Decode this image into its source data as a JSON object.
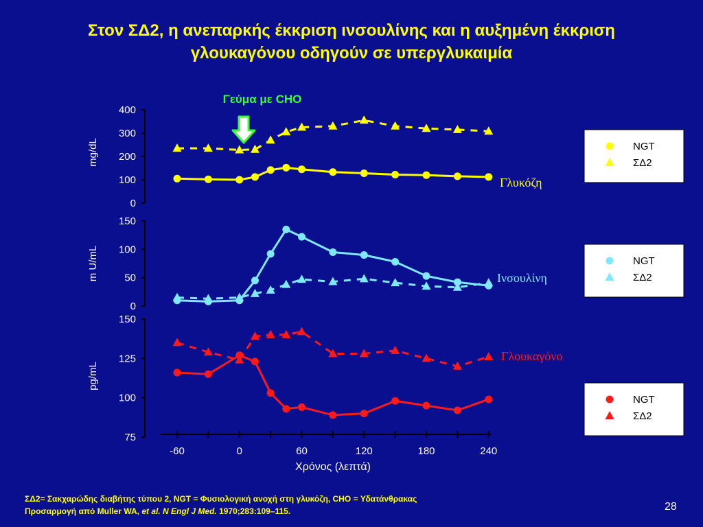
{
  "title": {
    "line1": "Στον ΣΔ2, η ανεπαρκής έκκριση ινσουλίνης και η αυξημένη έκκριση",
    "line2": "γλουκαγόνου οδηγούν σε υπεργλυκαιμία"
  },
  "meal_label": "Γεύμα με CHO",
  "colors": {
    "background": "#0a0f8f",
    "title": "#ffff00",
    "glucose": "#ffff00",
    "insulin": "#7fe8ff",
    "glucagon": "#ff1a1a",
    "meal_label": "#33ff33"
  },
  "chart_data": [
    {
      "type": "line",
      "panel": "glucose",
      "series_label": "Γλυκόζη",
      "ylabel": "mg/dL",
      "ylim": [
        0,
        400
      ],
      "yticks": [
        "0",
        "100",
        "200",
        "300",
        "400"
      ],
      "legend": [
        "NGT",
        "ΣΔ2"
      ],
      "series": [
        {
          "name": "NGT",
          "marker": "circle",
          "style": "solid",
          "x": [
            -60,
            -30,
            0,
            15,
            30,
            45,
            60,
            90,
            120,
            150,
            180,
            210,
            240
          ],
          "y": [
            105,
            102,
            100,
            112,
            142,
            152,
            145,
            133,
            128,
            122,
            120,
            115,
            112
          ]
        },
        {
          "name": "ΣΔ2",
          "marker": "triangle",
          "style": "dashed",
          "x": [
            -60,
            -30,
            0,
            15,
            30,
            45,
            60,
            90,
            120,
            150,
            180,
            210,
            240
          ],
          "y": [
            235,
            235,
            228,
            230,
            270,
            305,
            325,
            330,
            355,
            330,
            320,
            315,
            308
          ]
        }
      ]
    },
    {
      "type": "line",
      "panel": "insulin",
      "series_label": "Ινσουλίνη",
      "ylabel": "m U/mL",
      "ylim": [
        0,
        150
      ],
      "yticks": [
        "0",
        "50",
        "100",
        "150"
      ],
      "legend": [
        "NGT",
        "ΣΔ2"
      ],
      "series": [
        {
          "name": "NGT",
          "marker": "circle",
          "style": "solid",
          "x": [
            -60,
            -30,
            0,
            15,
            30,
            45,
            60,
            90,
            120,
            150,
            180,
            210,
            240
          ],
          "y": [
            10,
            8,
            10,
            45,
            92,
            135,
            122,
            95,
            90,
            78,
            53,
            42,
            36
          ]
        },
        {
          "name": "ΣΔ2",
          "marker": "triangle",
          "style": "dashed",
          "x": [
            -60,
            -30,
            0,
            15,
            30,
            45,
            60,
            90,
            120,
            150,
            180,
            210,
            240
          ],
          "y": [
            15,
            13,
            15,
            22,
            28,
            38,
            47,
            43,
            48,
            41,
            35,
            33,
            41
          ]
        }
      ]
    },
    {
      "type": "line",
      "panel": "glucagon",
      "series_label": "Γλουκαγόνο",
      "ylabel": "pg/mL",
      "ylim": [
        75,
        150
      ],
      "yticks": [
        "75",
        "100",
        "125",
        "150"
      ],
      "xlabel": "Χρόνος (λεπτά)",
      "xticks": [
        "-60",
        "0",
        "60",
        "120",
        "180",
        "240"
      ],
      "legend": [
        "NGT",
        "ΣΔ2"
      ],
      "series": [
        {
          "name": "NGT",
          "marker": "circle",
          "style": "solid",
          "x": [
            -60,
            -30,
            0,
            15,
            30,
            45,
            60,
            90,
            120,
            150,
            180,
            210,
            240
          ],
          "y": [
            116,
            115,
            127,
            123,
            103,
            93,
            94,
            89,
            90,
            98,
            95,
            92,
            99
          ]
        },
        {
          "name": "ΣΔ2",
          "marker": "triangle",
          "style": "dashed",
          "x": [
            -60,
            -30,
            0,
            15,
            30,
            45,
            60,
            90,
            120,
            150,
            180,
            210,
            240
          ],
          "y": [
            135,
            129,
            124,
            139,
            140,
            140,
            142,
            128,
            128,
            130,
            125,
            120,
            126
          ]
        }
      ]
    }
  ],
  "footnote": {
    "line1": "ΣΔ2= Σακχαρώδης διαβήτης τύπου 2, NGT = Φυσιολογική ανοχή στη γλυκόζη, CHO = Υδατάνθρακας",
    "line2_prefix": "Προσαρμογή από Muller WA,",
    "line2_italic": "et al. N Engl J Med.",
    "line2_suffix": "1970;283:109–115."
  },
  "page_number": "28"
}
